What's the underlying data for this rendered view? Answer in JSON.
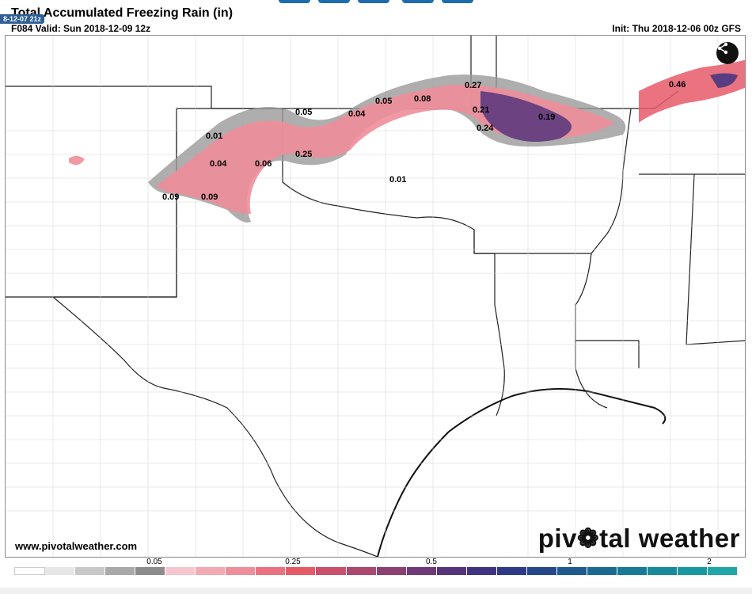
{
  "header": {
    "run_stamp": "8-12-07 21z",
    "title": "Total Accumulated Freezing Rain (in)",
    "valid": "F084 Valid: Sun 2018-12-09 12z",
    "init": "Init: Thu 2018-12-06 00z GFS"
  },
  "map": {
    "labels": [
      {
        "text": "0.01"
      },
      {
        "text": "0.04"
      },
      {
        "text": "0.06"
      },
      {
        "text": "0.09"
      },
      {
        "text": "0.09"
      },
      {
        "text": "0.05"
      },
      {
        "text": "0.25"
      },
      {
        "text": "0.04"
      },
      {
        "text": "0.05"
      },
      {
        "text": "0.08"
      },
      {
        "text": "0.01"
      },
      {
        "text": "0.27"
      },
      {
        "text": "0.21"
      },
      {
        "text": "0.24"
      },
      {
        "text": "0.19"
      },
      {
        "text": "0.46"
      }
    ],
    "share_icon": "share-icon"
  },
  "footer": {
    "url": "www.pivotalweather.com",
    "brand_pre": "piv",
    "brand_post": "tal weather"
  },
  "colorbar": {
    "tick_labels": [
      "0.05",
      "0.25",
      "0.5",
      "1",
      "2"
    ],
    "colors": [
      "#ffffff",
      "#e6e6e6",
      "#c8c8c8",
      "#a9a9a9",
      "#8c8c8c",
      "#f6c6ce",
      "#f2aab4",
      "#ee8e9a",
      "#ea7280",
      "#e65a68",
      "#c8506a",
      "#aa486e",
      "#8c4072",
      "#703a78",
      "#56347c",
      "#403482",
      "#2e3a86",
      "#24488a",
      "#1e5a8e",
      "#1a6a92",
      "#187a96",
      "#188a9a",
      "#1a98a0",
      "#20a6a8"
    ]
  }
}
